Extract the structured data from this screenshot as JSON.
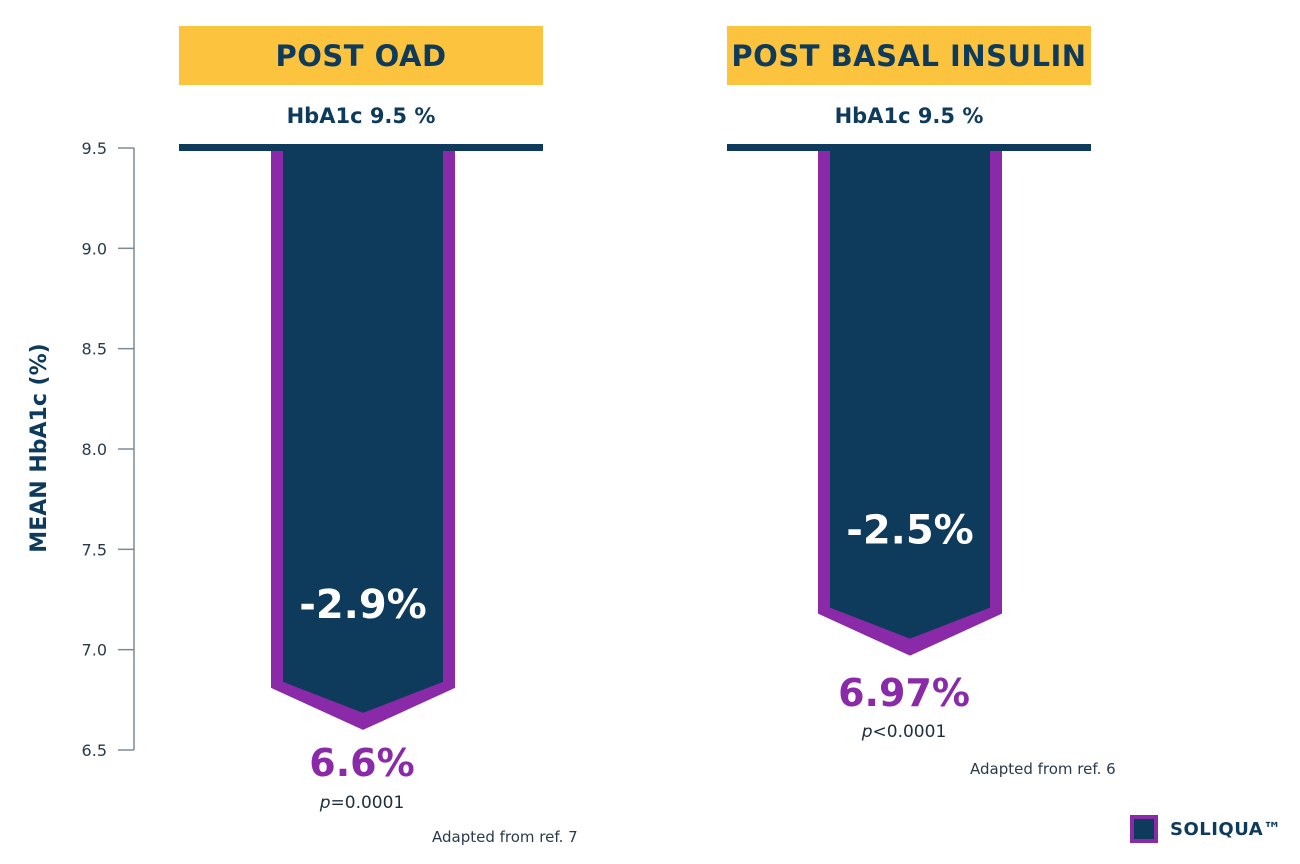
{
  "chart_data": {
    "type": "bar",
    "ylabel": "MEAN HbA1c (%)",
    "ylim": [
      6.5,
      9.5
    ],
    "y_ticks": [
      "9.5",
      "9.0",
      "8.5",
      "8.0",
      "7.5",
      "7.0",
      "6.5"
    ],
    "y_tick_values": [
      9.5,
      9.0,
      8.5,
      8.0,
      7.5,
      7.0,
      6.5
    ],
    "categories": [
      "POST OAD",
      "POST BASAL INSULIN"
    ],
    "groups": [
      {
        "category": "POST OAD",
        "baseline_label": "HbA1c  9.5 %",
        "baseline": 9.5,
        "end": 6.6,
        "change_label": "-2.9%",
        "end_label": "6.6%",
        "p_symbol": "p",
        "p_value": "=0.0001",
        "source": "Adapted from ref. 7"
      },
      {
        "category": "POST BASAL INSULIN",
        "baseline_label": "HbA1c  9.5 %",
        "baseline": 9.5,
        "end": 6.97,
        "change_label": "-2.5%",
        "end_label": "6.97%",
        "p_symbol": "p",
        "p_value": "<0.0001",
        "source": "Adapted from ref. 6"
      }
    ],
    "legend": [
      {
        "name": "SOLIQUA™"
      }
    ],
    "colors": {
      "header": "#fcc33e",
      "bar_fill": "#0e3a5c",
      "bar_border": "#8a2aa8",
      "end_value": "#8a2aa8"
    }
  }
}
